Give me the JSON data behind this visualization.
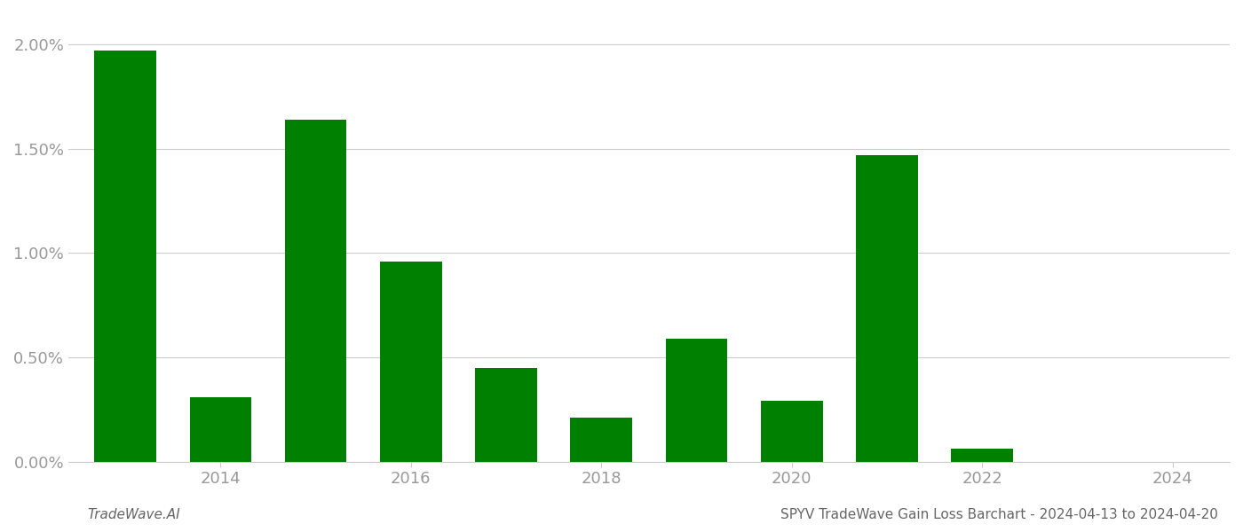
{
  "years": [
    2013,
    2014,
    2015,
    2016,
    2017,
    2018,
    2019,
    2020,
    2021,
    2022,
    2023
  ],
  "values": [
    0.0197,
    0.0031,
    0.0164,
    0.0096,
    0.0045,
    0.0021,
    0.0059,
    0.0029,
    0.0147,
    0.0006,
    0.0
  ],
  "bar_color": "#008000",
  "background_color": "#ffffff",
  "footer_left": "TradeWave.AI",
  "footer_right": "SPYV TradeWave Gain Loss Barchart - 2024-04-13 to 2024-04-20",
  "ylim": [
    0,
    0.0215
  ],
  "yticks": [
    0.0,
    0.005,
    0.01,
    0.015,
    0.02
  ],
  "ytick_labels": [
    "0.00%",
    "0.50%",
    "1.00%",
    "1.50%",
    "2.00%"
  ],
  "xticks": [
    2014,
    2016,
    2018,
    2020,
    2022,
    2024
  ],
  "grid_color": "#cccccc",
  "tick_color": "#999999",
  "bar_width": 0.65,
  "xlim_min": 2012.4,
  "xlim_max": 2024.6
}
